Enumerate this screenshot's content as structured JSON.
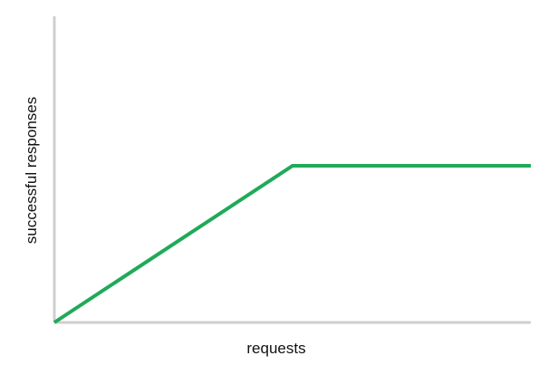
{
  "chart_data": {
    "type": "line",
    "xlabel": "requests",
    "ylabel": "successful responses",
    "grid": false,
    "xlim": [
      0,
      10
    ],
    "ylim": [
      0,
      10
    ],
    "series": [
      {
        "x": [
          0,
          5,
          10
        ],
        "y": [
          0,
          5,
          5
        ],
        "color": "#1faa59"
      }
    ]
  },
  "colors": {
    "axis": "#cfcfcf",
    "line": "#1faa59",
    "text": "#111111"
  }
}
